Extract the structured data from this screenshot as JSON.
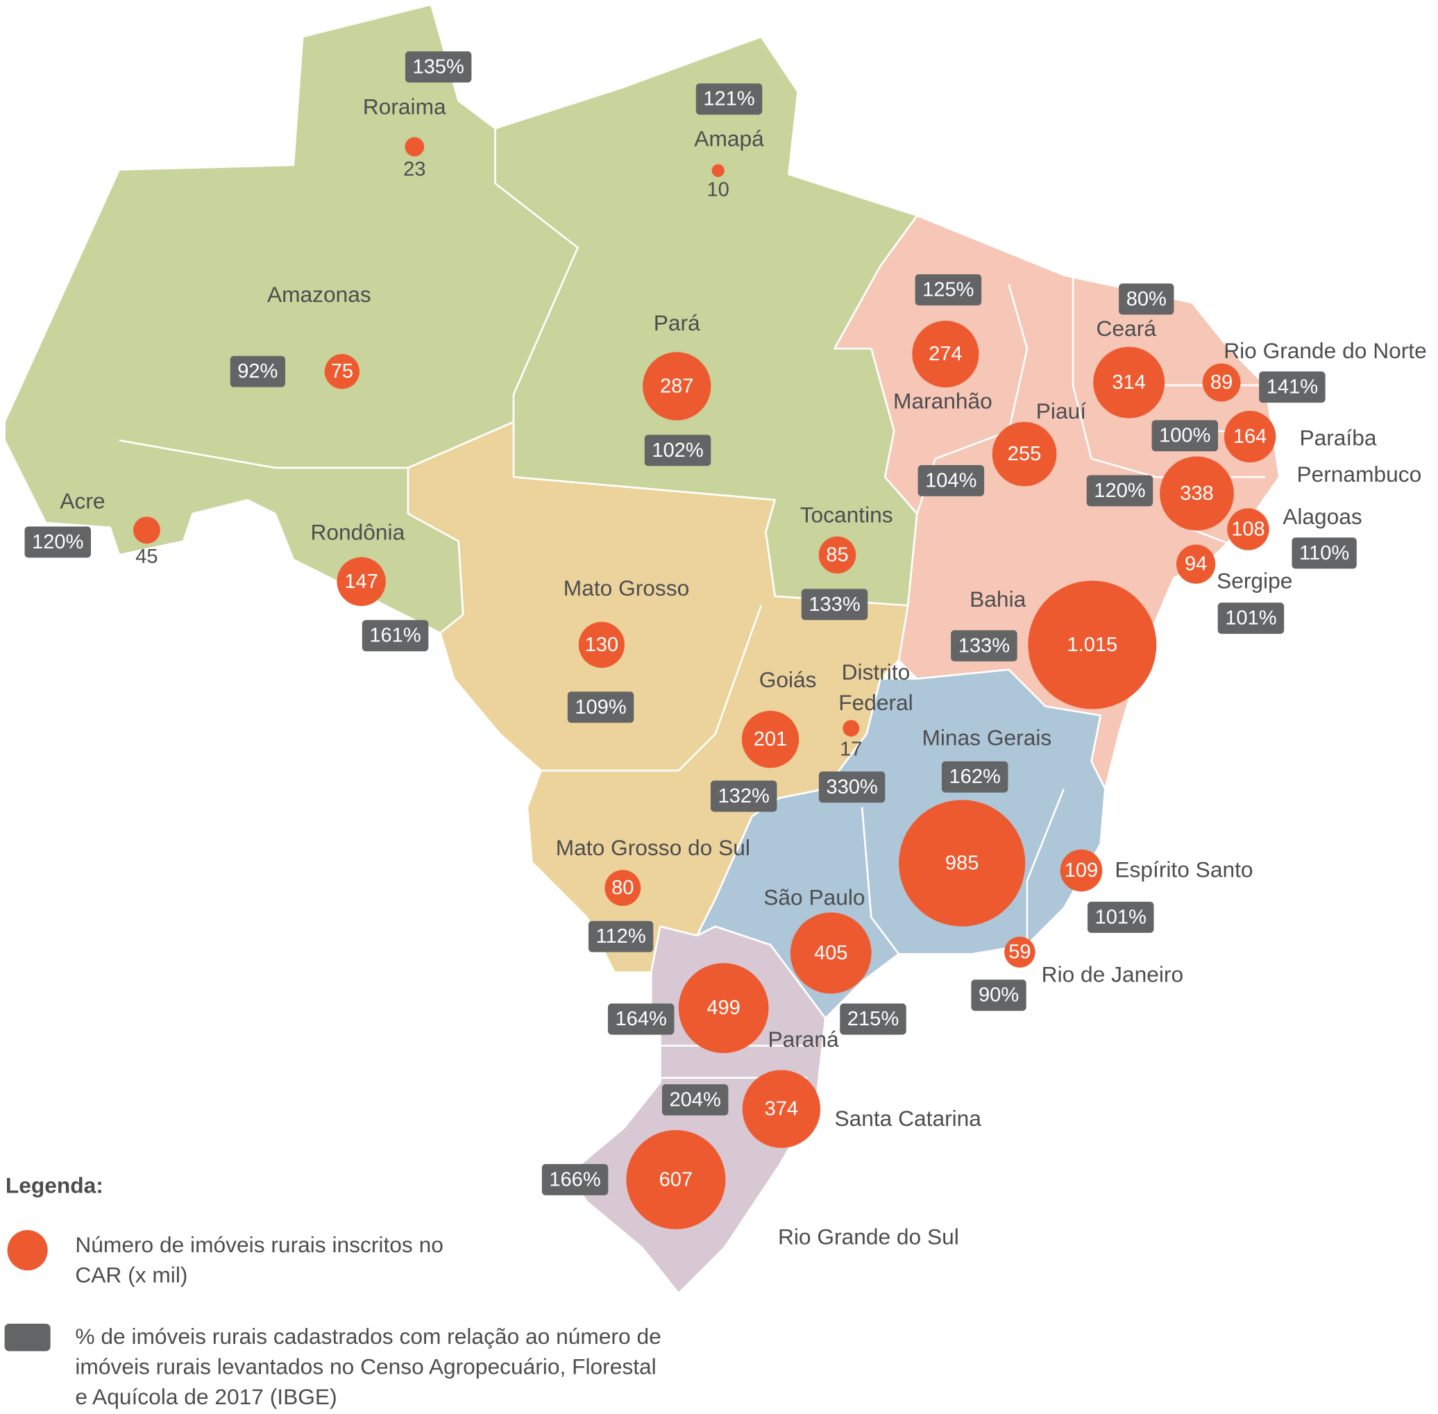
{
  "legend": {
    "title": "Legenda:",
    "items": [
      "Número de imóveis rurais inscritos no CAR (x mil)",
      "% de imóveis rurais cadastrados com relação ao número de imóveis rurais levantados no Censo Agropecuário, Florestal e Aquícola de 2017 (IBGE)"
    ]
  },
  "map": {
    "states": [
      {
        "name": "Roraima",
        "count": 23,
        "count_label": "23",
        "percent": "135%"
      },
      {
        "name": "Amapá",
        "count": 10,
        "count_label": "10",
        "percent": "121%"
      },
      {
        "name": "Amazonas",
        "count": 75,
        "count_label": "75",
        "percent": "92%"
      },
      {
        "name": "Pará",
        "count": 287,
        "count_label": "287",
        "percent": "102%"
      },
      {
        "name": "Acre",
        "count": 45,
        "count_label": "45",
        "percent": "120%"
      },
      {
        "name": "Rondônia",
        "count": 147,
        "count_label": "147",
        "percent": "161%"
      },
      {
        "name": "Tocantins",
        "count": 85,
        "count_label": "85",
        "percent": "133%"
      },
      {
        "name": "Maranhão",
        "count": 274,
        "count_label": "274",
        "percent": "125%"
      },
      {
        "name": "Piauí",
        "count": 255,
        "count_label": "255",
        "percent": "104%"
      },
      {
        "name": "Ceará",
        "count": 314,
        "count_label": "314",
        "percent": "80%"
      },
      {
        "name": "Rio Grande do Norte",
        "count": 89,
        "count_label": "89",
        "percent": "141%"
      },
      {
        "name": "Paraíba",
        "count": 164,
        "count_label": "164",
        "percent": "100%"
      },
      {
        "name": "Pernambuco",
        "count": 338,
        "count_label": "338",
        "percent": "120%"
      },
      {
        "name": "Alagoas",
        "count": 108,
        "count_label": "108",
        "percent": "110%"
      },
      {
        "name": "Sergipe",
        "count": 94,
        "count_label": "94",
        "percent": "101%"
      },
      {
        "name": "Bahia",
        "count": 1015,
        "count_label": "1.015",
        "percent": "133%"
      },
      {
        "name": "Mato Grosso",
        "count": 130,
        "count_label": "130",
        "percent": "109%"
      },
      {
        "name": "Goiás",
        "count": 201,
        "count_label": "201",
        "percent": "132%"
      },
      {
        "name": "Distrito Federal",
        "count": 17,
        "count_label": "17",
        "percent": "330%"
      },
      {
        "name": "Minas Gerais",
        "count": 985,
        "count_label": "985",
        "percent": "162%"
      },
      {
        "name": "Espírito Santo",
        "count": 109,
        "count_label": "109",
        "percent": "101%"
      },
      {
        "name": "Rio de Janeiro",
        "count": 59,
        "count_label": "59",
        "percent": "90%"
      },
      {
        "name": "São Paulo",
        "count": 405,
        "count_label": "405",
        "percent": "215%"
      },
      {
        "name": "Mato Grosso do Sul",
        "count": 80,
        "count_label": "80",
        "percent": "112%"
      },
      {
        "name": "Paraná",
        "count": 499,
        "count_label": "499",
        "percent": "164%"
      },
      {
        "name": "Santa Catarina",
        "count": 374,
        "count_label": "374",
        "percent": "204%"
      },
      {
        "name": "Rio Grande do Sul",
        "count": 607,
        "count_label": "607",
        "percent": "166%"
      }
    ]
  }
}
